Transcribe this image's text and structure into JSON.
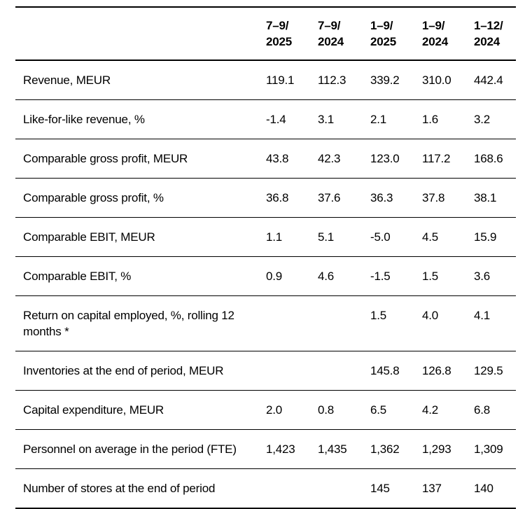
{
  "table": {
    "columns": [
      "7–9/\n2025",
      "7–9/\n2024",
      "1–9/\n2025",
      "1–9/\n2024",
      "1–12/\n2024"
    ],
    "rows": [
      {
        "label": "Revenue, MEUR",
        "values": [
          "119.1",
          "112.3",
          "339.2",
          "310.0",
          "442.4"
        ]
      },
      {
        "label": "Like-for-like revenue, %",
        "values": [
          "-1.4",
          "3.1",
          "2.1",
          "1.6",
          "3.2"
        ]
      },
      {
        "label": "Comparable gross profit, MEUR",
        "values": [
          "43.8",
          "42.3",
          "123.0",
          "117.2",
          "168.6"
        ]
      },
      {
        "label": "Comparable gross profit, %",
        "values": [
          "36.8",
          "37.6",
          "36.3",
          "37.8",
          "38.1"
        ]
      },
      {
        "label": "Comparable EBIT, MEUR",
        "values": [
          "1.1",
          "5.1",
          "-5.0",
          "4.5",
          "15.9"
        ]
      },
      {
        "label": "Comparable EBIT, %",
        "values": [
          "0.9",
          "4.6",
          "-1.5",
          "1.5",
          "3.6"
        ]
      },
      {
        "label": "Return on capital employed, %, rolling 12 months *",
        "values": [
          "",
          "",
          "1.5",
          "4.0",
          "4.1"
        ]
      },
      {
        "label": "Inventories at the end of period, MEUR",
        "values": [
          "",
          "",
          "145.8",
          "126.8",
          "129.5"
        ]
      },
      {
        "label": "Capital expenditure, MEUR",
        "values": [
          "2.0",
          "0.8",
          "6.5",
          "4.2",
          "6.8"
        ]
      },
      {
        "label": "Personnel on average in the period (FTE)",
        "values": [
          "1,423",
          "1,435",
          "1,362",
          "1,293",
          "1,309"
        ]
      },
      {
        "label": "Number of stores at the end of period",
        "values": [
          "",
          "",
          "145",
          "137",
          "140"
        ]
      }
    ],
    "colors": {
      "text": "#000000",
      "rule": "#000000",
      "background": "#ffffff"
    }
  }
}
